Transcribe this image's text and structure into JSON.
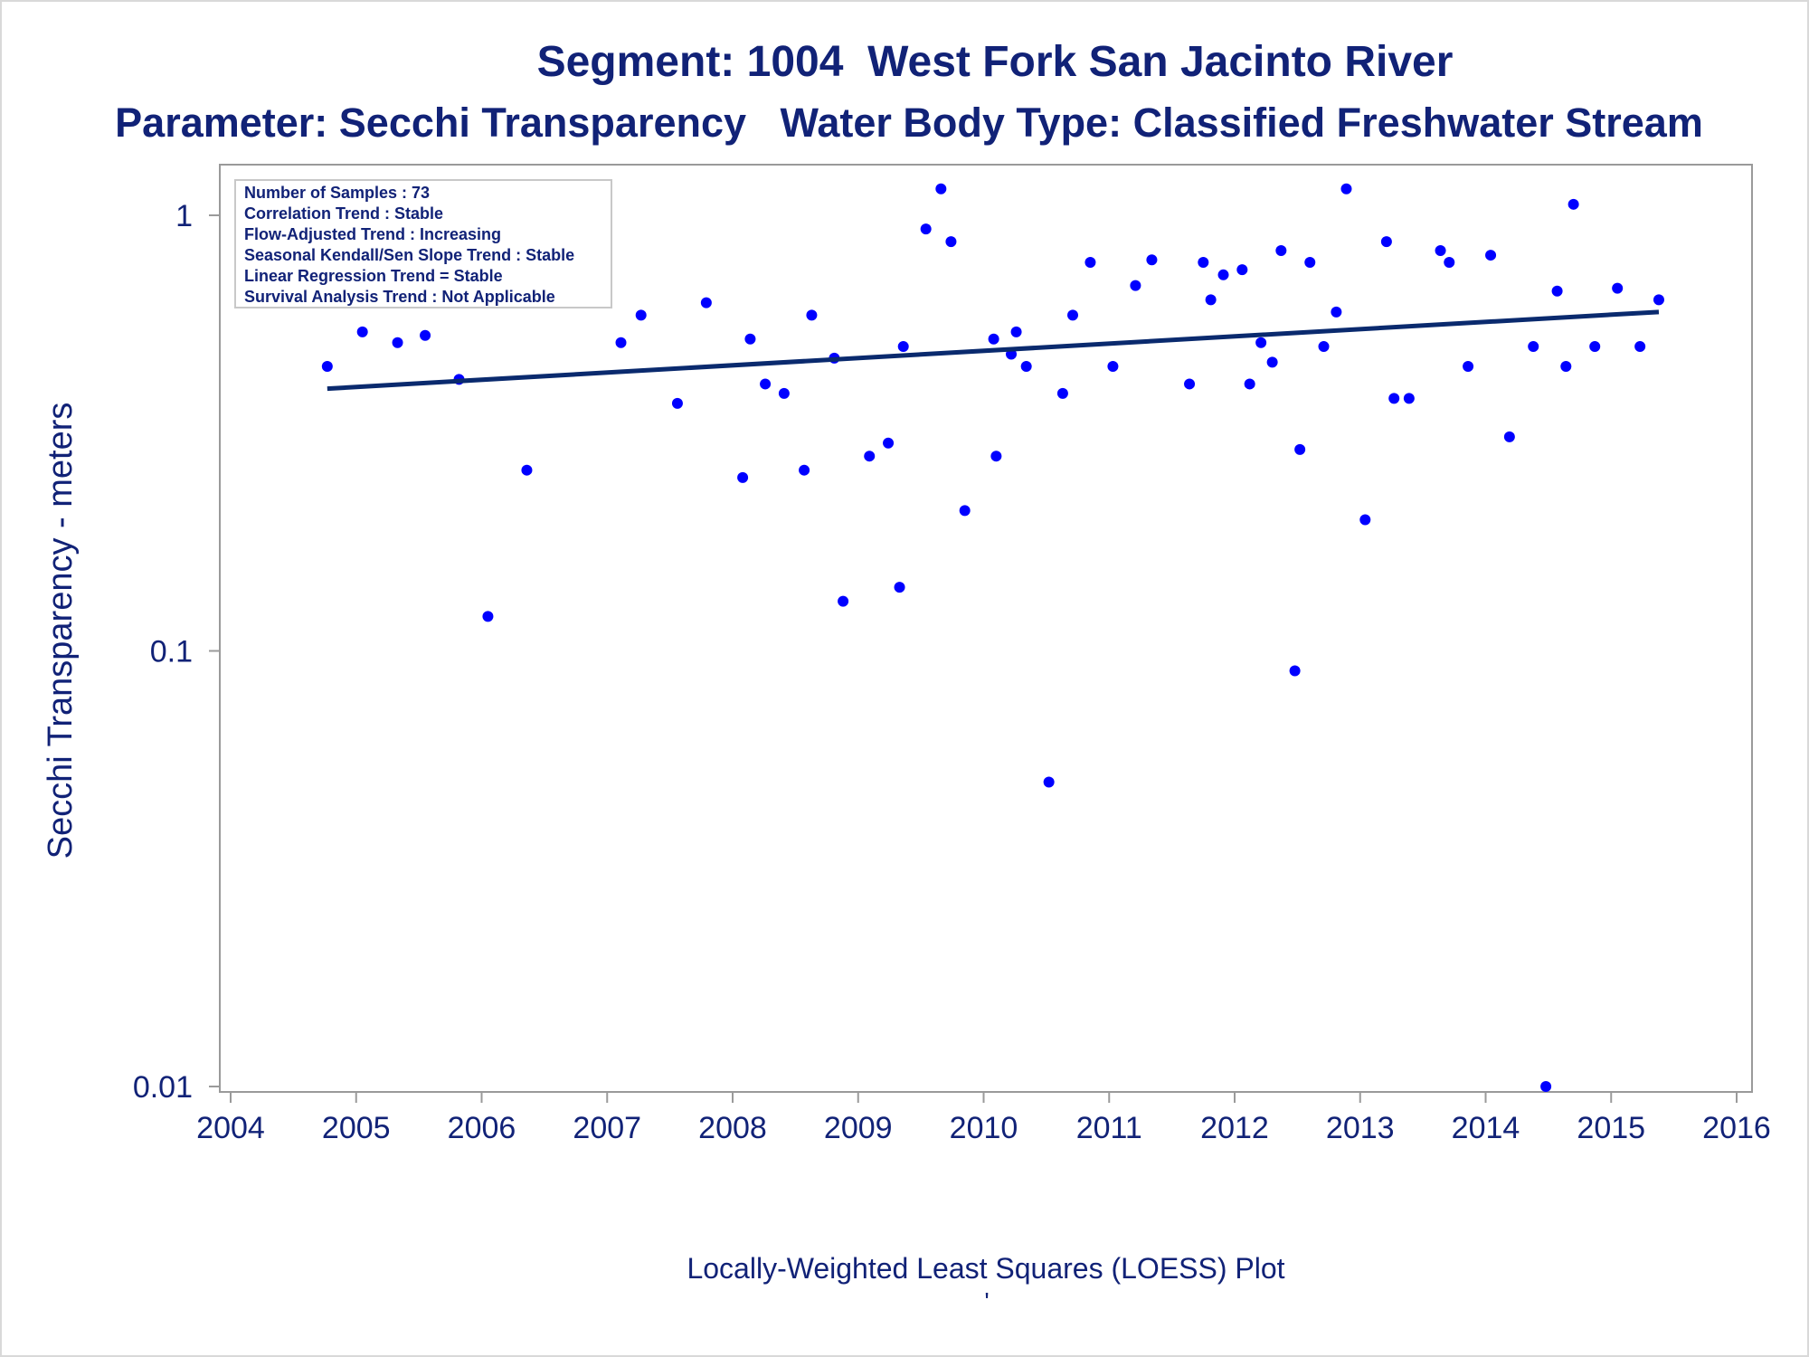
{
  "colors": {
    "text": "#112277",
    "point": "#0000ff",
    "line": "#0a2a6e",
    "frame": "#9a9a9a",
    "legend_border": "#c8c8c8"
  },
  "chart_data": {
    "type": "scatter",
    "title": "Segment: 1004  West Fork San Jacinto River",
    "subtitle": "Parameter: Secchi Transparency   Water Body Type: Classified Freshwater Stream",
    "xlabel": "Locally-Weighted Least Squares (LOESS) Plot",
    "footnote": "'",
    "ylabel": "Secchi Transparency - meters",
    "y_scale": "log",
    "xlim": [
      2004,
      2016
    ],
    "ylim": [
      0.01,
      1
    ],
    "x_ticks": [
      "2004",
      "2005",
      "2006",
      "2007",
      "2008",
      "2009",
      "2010",
      "2011",
      "2012",
      "2013",
      "2014",
      "2015",
      "2016"
    ],
    "y_ticks": [
      {
        "value": 1,
        "label": "1"
      },
      {
        "value": 0.1,
        "label": "0.1"
      },
      {
        "value": 0.01,
        "label": "0.01"
      }
    ],
    "grid": false,
    "legend_placement": "top-left",
    "stats": [
      "Number of Samples : 73",
      "Correlation Trend : Stable",
      "Flow-Adjusted Trend : Increasing",
      "Seasonal Kendall/Sen Slope Trend : Stable",
      "Linear Regression Trend = Stable",
      "Survival Analysis Trend : Not Applicable"
    ],
    "series": [
      {
        "kind": "points",
        "points": [
          [
            2004.77,
            0.45
          ],
          [
            2005.05,
            0.54
          ],
          [
            2005.33,
            0.51
          ],
          [
            2005.55,
            0.53
          ],
          [
            2005.82,
            0.42
          ],
          [
            2006.05,
            0.12
          ],
          [
            2006.36,
            0.26
          ],
          [
            2006.55,
            0.63
          ],
          [
            2007.11,
            0.51
          ],
          [
            2007.27,
            0.59
          ],
          [
            2007.56,
            0.37
          ],
          [
            2007.79,
            0.63
          ],
          [
            2008.08,
            0.25
          ],
          [
            2008.14,
            0.52
          ],
          [
            2008.26,
            0.41
          ],
          [
            2008.41,
            0.39
          ],
          [
            2008.57,
            0.26
          ],
          [
            2008.63,
            0.59
          ],
          [
            2008.81,
            0.47
          ],
          [
            2008.88,
            0.13
          ],
          [
            2009.09,
            0.28
          ],
          [
            2009.24,
            0.3
          ],
          [
            2009.33,
            0.14
          ],
          [
            2009.36,
            0.5
          ],
          [
            2009.54,
            0.93
          ],
          [
            2009.66,
            1.15
          ],
          [
            2009.74,
            0.87
          ],
          [
            2009.85,
            0.21
          ],
          [
            2010.08,
            0.52
          ],
          [
            2010.1,
            0.28
          ],
          [
            2010.22,
            0.48
          ],
          [
            2010.26,
            0.54
          ],
          [
            2010.34,
            0.45
          ],
          [
            2010.52,
            0.05
          ],
          [
            2010.63,
            0.39
          ],
          [
            2010.71,
            0.59
          ],
          [
            2010.85,
            0.78
          ],
          [
            2011.03,
            0.45
          ],
          [
            2011.21,
            0.69
          ],
          [
            2011.34,
            0.79
          ],
          [
            2011.64,
            0.41
          ],
          [
            2011.75,
            0.78
          ],
          [
            2011.81,
            0.64
          ],
          [
            2011.91,
            0.73
          ],
          [
            2012.06,
            0.75
          ],
          [
            2012.12,
            0.41
          ],
          [
            2012.21,
            0.51
          ],
          [
            2012.3,
            0.46
          ],
          [
            2012.37,
            0.83
          ],
          [
            2012.48,
            0.09
          ],
          [
            2012.52,
            0.29
          ],
          [
            2012.6,
            0.78
          ],
          [
            2012.71,
            0.5
          ],
          [
            2012.81,
            0.6
          ],
          [
            2012.89,
            1.15
          ],
          [
            2013.04,
            0.2
          ],
          [
            2013.21,
            0.87
          ],
          [
            2013.27,
            0.38
          ],
          [
            2013.39,
            0.38
          ],
          [
            2013.64,
            0.83
          ],
          [
            2013.71,
            0.78
          ],
          [
            2013.86,
            0.45
          ],
          [
            2014.04,
            0.81
          ],
          [
            2014.19,
            0.31
          ],
          [
            2014.38,
            0.5
          ],
          [
            2014.48,
            0.01
          ],
          [
            2014.57,
            0.67
          ],
          [
            2014.64,
            0.45
          ],
          [
            2014.7,
            1.06
          ],
          [
            2014.87,
            0.5
          ],
          [
            2015.05,
            0.68
          ],
          [
            2015.23,
            0.5
          ],
          [
            2015.38,
            0.64
          ]
        ]
      },
      {
        "kind": "line",
        "points": [
          [
            2004.77,
            0.4
          ],
          [
            2015.38,
            0.6
          ]
        ]
      }
    ]
  }
}
